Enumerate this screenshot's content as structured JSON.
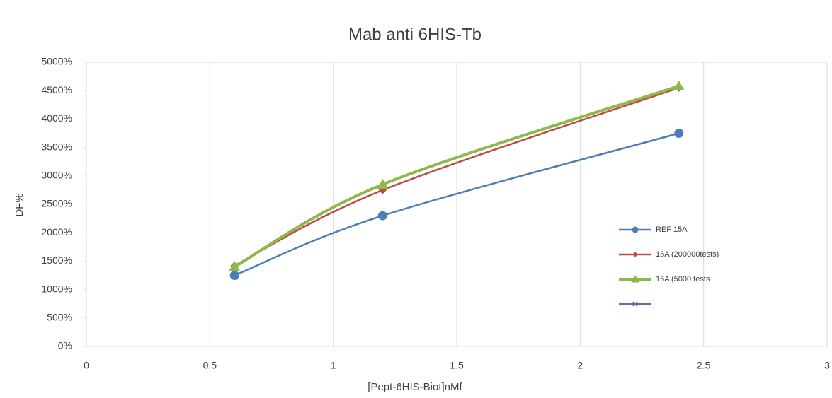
{
  "chart_data": {
    "type": "line",
    "title": "Mab anti 6HIS-Tb",
    "x_label": "[Pept-6HIS-Biot]nMf",
    "y_label": "DF%",
    "x": [
      0.6,
      1.2,
      2.4
    ],
    "series": [
      {
        "name": "REF 15A",
        "color": "#4a7ebb",
        "marker": "circle",
        "values": [
          1250,
          2300,
          3750
        ]
      },
      {
        "name": "16A (200000tests)",
        "color": "#be4b48",
        "marker": "diamond",
        "values": [
          1420,
          2750,
          4550
        ]
      },
      {
        "name": "16A (5000 tests",
        "color": "#8db84a",
        "marker": "triangle",
        "values": [
          1400,
          2850,
          4580
        ]
      },
      {
        "color": "#7d5fa0",
        "marker": "x",
        "values": [
          null,
          null,
          null
        ]
      }
    ],
    "xlim": [
      0,
      3
    ],
    "xticks": [
      0,
      0.5,
      1,
      1.5,
      2,
      2.5,
      3
    ],
    "ylim": [
      0,
      5000
    ],
    "yticks": [
      {
        "value": 0,
        "label": "0%"
      },
      {
        "value": 500,
        "label": "500%"
      },
      {
        "value": 1000,
        "label": "1000%"
      },
      {
        "value": 1500,
        "label": "1500%"
      },
      {
        "value": 2000,
        "label": "2000%"
      },
      {
        "value": 2500,
        "label": "2500%"
      },
      {
        "value": 3000,
        "label": "3000%"
      },
      {
        "value": 3500,
        "label": "3500%"
      },
      {
        "value": 4000,
        "label": "4000%"
      },
      {
        "value": 4500,
        "label": "4500%"
      },
      {
        "value": 5000,
        "label": "5000%"
      }
    ],
    "grid": "x",
    "smooth": true
  }
}
